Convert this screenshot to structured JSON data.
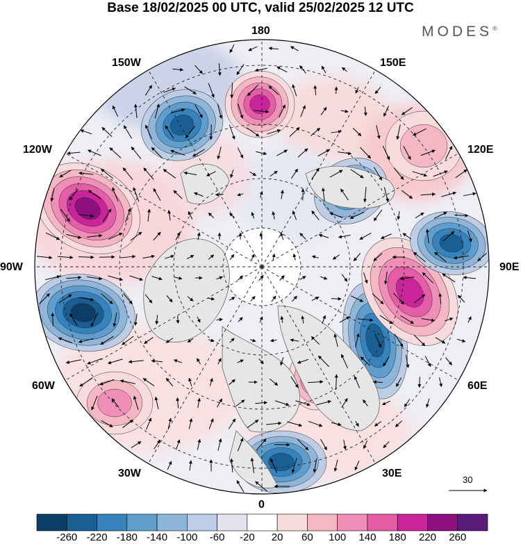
{
  "title": "Base 18/02/2025 00 UTC, valid 25/02/2025 12 UTC",
  "brand": {
    "name": "MODES",
    "mark": "®"
  },
  "longitude_labels": {
    "top": "180",
    "top_left": "150W",
    "top_right": "150E",
    "upper_left": "120W",
    "upper_right": "120E",
    "left": "90W",
    "right": "90E",
    "lower_left": "60W",
    "lower_right": "60E",
    "bottom_left": "30W",
    "bottom_right": "30E",
    "bottom": "0"
  },
  "reference_vector": {
    "label": "30"
  },
  "colorbar": {
    "labels": [
      "-260",
      "-220",
      "-180",
      "-140",
      "-100",
      "-60",
      "-20",
      "20",
      "60",
      "100",
      "140",
      "180",
      "220",
      "260"
    ],
    "colors": [
      "#0c3d66",
      "#1a5f94",
      "#3582bc",
      "#5f9dcc",
      "#8fb5d8",
      "#bccde5",
      "#e3e3f0",
      "#ffffff",
      "#f8dbdc",
      "#f5b7c4",
      "#ef8fb8",
      "#e55ca7",
      "#c9249a",
      "#8d0f80",
      "#5a1a7a"
    ]
  },
  "map": {
    "projection": "north polar stereographic",
    "land_color": "#e6e6e6",
    "anomalies": [
      {
        "sign": "negative",
        "strength": 0.85,
        "region": "Gulf of Alaska / North Pacific"
      },
      {
        "sign": "positive",
        "strength": 0.75,
        "region": "Bering Strait"
      },
      {
        "sign": "positive",
        "strength": 0.95,
        "region": "Western Canada"
      },
      {
        "sign": "negative",
        "strength": 0.95,
        "region": "Hudson Bay / Labrador"
      },
      {
        "sign": "positive",
        "strength": 0.55,
        "region": "North Atlantic"
      },
      {
        "sign": "negative",
        "strength": 0.9,
        "region": "Western Europe"
      },
      {
        "sign": "positive",
        "strength": 0.6,
        "region": "Scandinavia"
      },
      {
        "sign": "negative",
        "strength": 0.85,
        "region": "Western Siberia"
      },
      {
        "sign": "positive",
        "strength": 0.85,
        "region": "Central Siberia"
      },
      {
        "sign": "negative",
        "strength": 0.8,
        "region": "Eastern Siberia"
      },
      {
        "sign": "negative",
        "strength": 0.6,
        "region": "Laptev / East Siberian Sea"
      },
      {
        "sign": "positive",
        "strength": 0.4,
        "region": "Sea of Okhotsk"
      }
    ]
  }
}
